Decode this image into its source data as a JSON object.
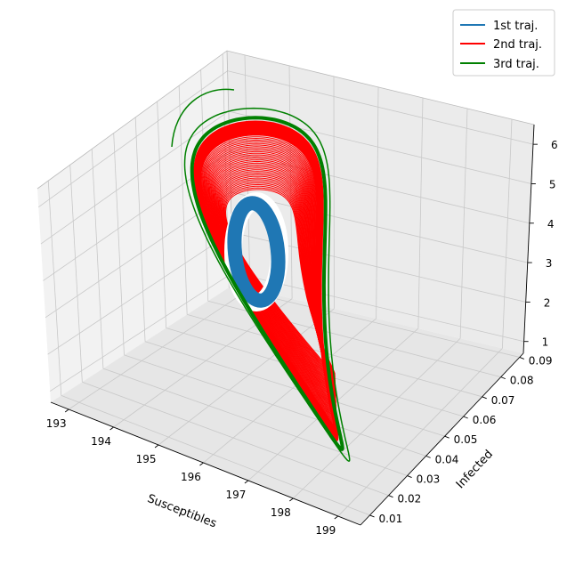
{
  "chart_data": {
    "type": "line",
    "projection": "3d",
    "xlabel": "Susceptibles",
    "ylabel": "Infected",
    "zlabel": "",
    "xlim": [
      192.6,
      199.5
    ],
    "ylim": [
      0.005,
      0.092
    ],
    "zlim": [
      0.7,
      6.5
    ],
    "x_ticks": [
      "193",
      "194",
      "195",
      "196",
      "197",
      "198",
      "199"
    ],
    "y_ticks": [
      "0.01",
      "0.02",
      "0.03",
      "0.04",
      "0.05",
      "0.06",
      "0.07",
      "0.08",
      "0.09"
    ],
    "z_ticks": [
      "1",
      "2",
      "3",
      "4",
      "5",
      "6"
    ],
    "grid": true,
    "legend_position": "top-right",
    "series": [
      {
        "name": "1st traj.",
        "color": "#1f77b4",
        "style": "thick elliptical band (limit cycle)"
      },
      {
        "name": "2nd traj.",
        "color": "#ff0000",
        "style": "dense teardrop spiral"
      },
      {
        "name": "3rd traj.",
        "color": "#008000",
        "style": "outer teardrop orbit"
      }
    ]
  }
}
